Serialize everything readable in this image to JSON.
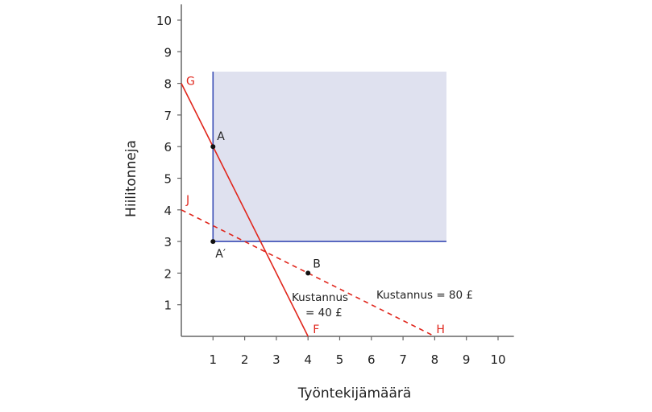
{
  "chart_data": {
    "type": "line",
    "xlabel": "Työntekijämäärä",
    "ylabel": "Hiilitonneja",
    "xlim": [
      0,
      10.5
    ],
    "ylim": [
      0,
      10.5
    ],
    "xticks": [
      1,
      2,
      3,
      4,
      5,
      6,
      7,
      8,
      9,
      10
    ],
    "yticks": [
      1,
      2,
      3,
      4,
      5,
      6,
      7,
      8,
      9,
      10
    ],
    "grid": false,
    "shaded_region": {
      "x": [
        1,
        8.37
      ],
      "y": [
        3,
        8.37
      ],
      "color": "#dfe1ef",
      "border_color": "#3a4cb4"
    },
    "series": [
      {
        "points": [
          [
            0,
            8
          ],
          [
            4,
            0
          ]
        ],
        "style": "solid",
        "color": "#e0261c",
        "start_label": "G",
        "end_label": "F",
        "annotation": [
          "Kustannus",
          "= 40 £"
        ]
      },
      {
        "points": [
          [
            0,
            4
          ],
          [
            8,
            0
          ]
        ],
        "style": "dashed",
        "color": "#e0261c",
        "start_label": "J",
        "end_label": "H",
        "annotation": [
          "Kustannus = 80 £"
        ]
      }
    ],
    "points": [
      {
        "label": "A",
        "x": 1,
        "y": 6
      },
      {
        "label": "A′",
        "x": 1,
        "y": 3
      },
      {
        "label": "B",
        "x": 4,
        "y": 2
      }
    ]
  }
}
